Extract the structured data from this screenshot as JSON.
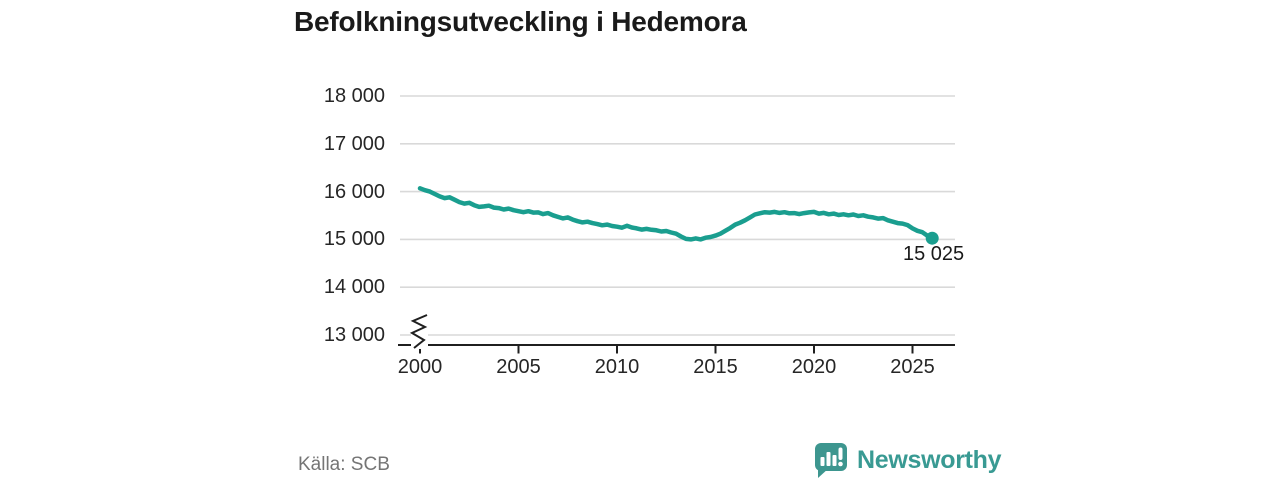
{
  "title": "Befolkningsutveckling i Hedemora",
  "source": "Källa: SCB",
  "logo": {
    "text": "Newsworthy",
    "color": "#399a93",
    "icon": "speech-bubble-bar-chart-icon"
  },
  "colors": {
    "line": "#1A9E8F",
    "grid": "#D9D9D9",
    "axis": "#1F1F1F",
    "tick_text": "#262626",
    "title_text": "#1A1A1A",
    "muted_text": "#757575"
  },
  "chart_data": {
    "type": "line",
    "title": "Befolkningsutveckling i Hedemora",
    "xlabel": "",
    "ylabel": "",
    "grid": true,
    "axis_break_marker": true,
    "x_ticks": [
      {
        "value": 2000,
        "label": "2000"
      },
      {
        "value": 2005,
        "label": "2005"
      },
      {
        "value": 2010,
        "label": "2010"
      },
      {
        "value": 2015,
        "label": "2015"
      },
      {
        "value": 2020,
        "label": "2020"
      },
      {
        "value": 2025,
        "label": "2025"
      }
    ],
    "y_ticks": [
      {
        "value": 13000,
        "label": "13 000"
      },
      {
        "value": 14000,
        "label": "14 000"
      },
      {
        "value": 15000,
        "label": "15 000"
      },
      {
        "value": 16000,
        "label": "16 000"
      },
      {
        "value": 17000,
        "label": "17 000"
      },
      {
        "value": 18000,
        "label": "18 000"
      }
    ],
    "xlim": [
      1999,
      2027.2
    ],
    "ylim": [
      13000,
      18000
    ],
    "end_label": "15 025",
    "latest_point": {
      "x": 2026,
      "value": 15025
    },
    "series": [
      {
        "name": "Befolkning",
        "points": [
          [
            2000.0,
            16070
          ],
          [
            2000.25,
            16030
          ],
          [
            2000.5,
            16000
          ],
          [
            2000.75,
            15950
          ],
          [
            2001.0,
            15900
          ],
          [
            2001.25,
            15865
          ],
          [
            2001.5,
            15880
          ],
          [
            2001.75,
            15830
          ],
          [
            2002.0,
            15780
          ],
          [
            2002.25,
            15750
          ],
          [
            2002.5,
            15765
          ],
          [
            2002.75,
            15715
          ],
          [
            2003.0,
            15680
          ],
          [
            2003.25,
            15690
          ],
          [
            2003.5,
            15705
          ],
          [
            2003.75,
            15665
          ],
          [
            2004.0,
            15655
          ],
          [
            2004.25,
            15625
          ],
          [
            2004.5,
            15645
          ],
          [
            2004.75,
            15610
          ],
          [
            2005.0,
            15590
          ],
          [
            2005.25,
            15570
          ],
          [
            2005.5,
            15590
          ],
          [
            2005.75,
            15560
          ],
          [
            2006.0,
            15565
          ],
          [
            2006.25,
            15530
          ],
          [
            2006.5,
            15550
          ],
          [
            2006.75,
            15505
          ],
          [
            2007.0,
            15470
          ],
          [
            2007.25,
            15440
          ],
          [
            2007.5,
            15460
          ],
          [
            2007.75,
            15415
          ],
          [
            2008.0,
            15380
          ],
          [
            2008.25,
            15355
          ],
          [
            2008.5,
            15370
          ],
          [
            2008.75,
            15340
          ],
          [
            2009.0,
            15320
          ],
          [
            2009.25,
            15295
          ],
          [
            2009.5,
            15310
          ],
          [
            2009.75,
            15280
          ],
          [
            2010.0,
            15265
          ],
          [
            2010.25,
            15245
          ],
          [
            2010.5,
            15285
          ],
          [
            2010.75,
            15250
          ],
          [
            2011.0,
            15230
          ],
          [
            2011.25,
            15205
          ],
          [
            2011.5,
            15220
          ],
          [
            2011.75,
            15200
          ],
          [
            2012.0,
            15190
          ],
          [
            2012.25,
            15165
          ],
          [
            2012.5,
            15175
          ],
          [
            2012.75,
            15145
          ],
          [
            2013.0,
            15120
          ],
          [
            2013.25,
            15060
          ],
          [
            2013.5,
            15010
          ],
          [
            2013.75,
            15000
          ],
          [
            2014.0,
            15020
          ],
          [
            2014.25,
            15000
          ],
          [
            2014.5,
            15035
          ],
          [
            2014.75,
            15050
          ],
          [
            2015.0,
            15080
          ],
          [
            2015.25,
            15120
          ],
          [
            2015.5,
            15180
          ],
          [
            2015.75,
            15240
          ],
          [
            2016.0,
            15310
          ],
          [
            2016.25,
            15350
          ],
          [
            2016.5,
            15400
          ],
          [
            2016.75,
            15460
          ],
          [
            2017.0,
            15520
          ],
          [
            2017.25,
            15545
          ],
          [
            2017.5,
            15570
          ],
          [
            2017.75,
            15560
          ],
          [
            2018.0,
            15575
          ],
          [
            2018.25,
            15555
          ],
          [
            2018.5,
            15570
          ],
          [
            2018.75,
            15545
          ],
          [
            2019.0,
            15550
          ],
          [
            2019.25,
            15530
          ],
          [
            2019.5,
            15550
          ],
          [
            2019.75,
            15565
          ],
          [
            2020.0,
            15575
          ],
          [
            2020.25,
            15540
          ],
          [
            2020.5,
            15555
          ],
          [
            2020.75,
            15525
          ],
          [
            2021.0,
            15540
          ],
          [
            2021.25,
            15510
          ],
          [
            2021.5,
            15525
          ],
          [
            2021.75,
            15505
          ],
          [
            2022.0,
            15520
          ],
          [
            2022.25,
            15490
          ],
          [
            2022.5,
            15505
          ],
          [
            2022.75,
            15475
          ],
          [
            2023.0,
            15460
          ],
          [
            2023.25,
            15435
          ],
          [
            2023.5,
            15445
          ],
          [
            2023.75,
            15400
          ],
          [
            2024.0,
            15370
          ],
          [
            2024.25,
            15340
          ],
          [
            2024.5,
            15330
          ],
          [
            2024.75,
            15300
          ],
          [
            2025.0,
            15230
          ],
          [
            2025.25,
            15180
          ],
          [
            2025.5,
            15150
          ],
          [
            2025.75,
            15080
          ],
          [
            2026.0,
            15025
          ]
        ]
      }
    ]
  }
}
